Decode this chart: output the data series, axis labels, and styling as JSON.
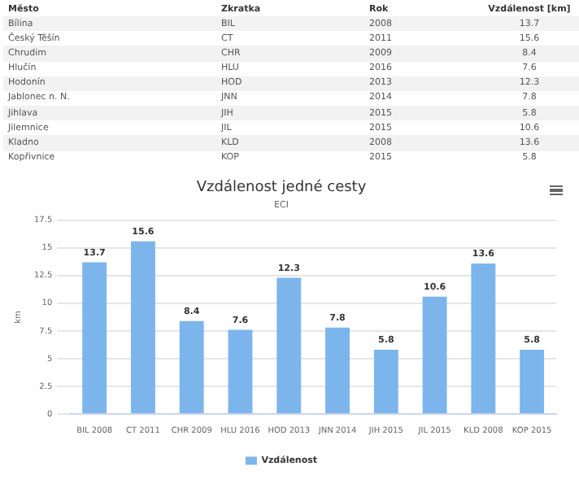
{
  "chart_data": {
    "type": "bar",
    "title": "Vzdálenost jedné cesty",
    "subtitle": "ECI",
    "ylabel": "km",
    "categories": [
      "BIL 2008",
      "CT 2011",
      "CHR 2009",
      "HLU 2016",
      "HOD 2013",
      "JNN 2014",
      "JIH 2015",
      "JIL 2015",
      "KLD 2008",
      "KOP 2015"
    ],
    "series": [
      {
        "name": "Vzdálenost",
        "color": "#7cb5ec",
        "values": [
          13.7,
          15.6,
          8.4,
          7.6,
          12.3,
          7.8,
          5.8,
          10.6,
          13.6,
          5.8
        ]
      }
    ],
    "ylim": [
      0,
      17.5
    ],
    "yticks": [
      0,
      2.5,
      5,
      7.5,
      10,
      12.5,
      15,
      17.5
    ],
    "grid": "y",
    "legend": "bottom",
    "data_labels": true,
    "annotations": [
      "Město",
      "Zkratka",
      "Rok",
      "Vzdálenost [km]",
      "Bílina",
      "BIL",
      "2008",
      "13.7",
      "Český Těšín",
      "CT",
      "2011",
      "15.6",
      "Chrudim",
      "CHR",
      "2009",
      "8.4",
      "Hlučín",
      "HLU",
      "2016",
      "7.6",
      "Hodonín",
      "HOD",
      "2013",
      "12.3",
      "Jablonec n. N.",
      "JNN",
      "2014",
      "7.8",
      "Jihlava",
      "JIH",
      "2015",
      "5.8",
      "Jilemnice",
      "JIL",
      "2015",
      "10.6",
      "Kladno",
      "KLD",
      "2008",
      "13.6",
      "Kopřivnice",
      "KOP",
      "2015",
      "5.8"
    ]
  }
}
